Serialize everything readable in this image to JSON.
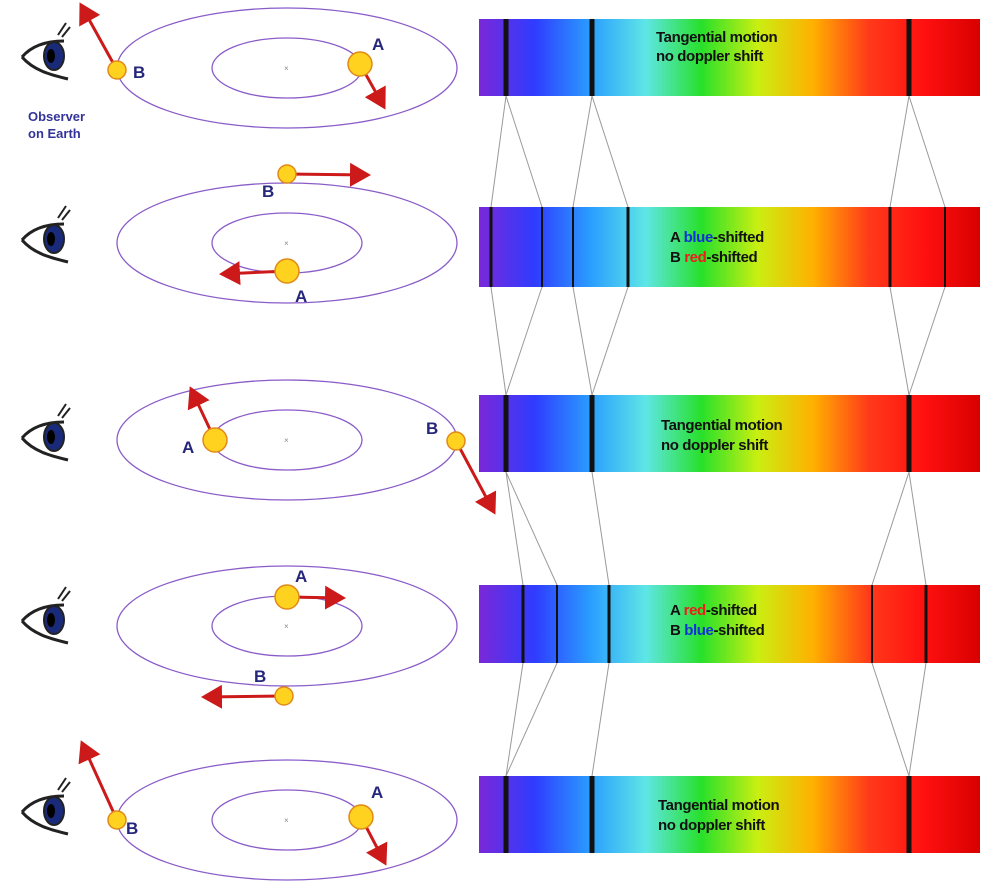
{
  "observer": {
    "label_line1": "Observer",
    "label_line2": "on Earth",
    "icon": "eye-icon"
  },
  "stars": {
    "a": "A",
    "b": "B"
  },
  "colors": {
    "orbit": "#8a5cc8",
    "star_fill": "#ffd21f",
    "star_stroke": "#e08a1a",
    "arrow": "#cc1a1a",
    "label": "#26267a",
    "blue_word": "#1030d8",
    "red_word": "#ee1c1c",
    "spectrum": [
      "#7a28d8",
      "#2f3cff",
      "#2a9dff",
      "#5ee6e6",
      "#28e02a",
      "#c9ef12",
      "#ffb000",
      "#ff3a1a",
      "#ff1010",
      "#d80000"
    ]
  },
  "panels": [
    {
      "phase": "tangential",
      "text_line1": {
        "plain": "Tangential motion"
      },
      "text_line2": {
        "plain": "no doppler shift"
      },
      "absorption_line_shift": "none"
    },
    {
      "phase": "a-approaching",
      "text_line1": {
        "prefix": "A ",
        "colored": "blue",
        "suffix": "-shifted",
        "color": "blue"
      },
      "text_line2": {
        "prefix": "B ",
        "colored": "red",
        "suffix": "-shifted",
        "color": "red"
      },
      "absorption_line_shift": "split"
    },
    {
      "phase": "tangential",
      "text_line1": {
        "plain": "Tangential motion"
      },
      "text_line2": {
        "plain": "no doppler shift"
      },
      "absorption_line_shift": "none"
    },
    {
      "phase": "a-receding",
      "text_line1": {
        "prefix": "A ",
        "colored": "red",
        "suffix": "-shifted",
        "color": "red"
      },
      "text_line2": {
        "prefix": "B ",
        "colored": "blue",
        "suffix": "-shifted",
        "color": "blue"
      },
      "absorption_line_shift": "split"
    },
    {
      "phase": "tangential",
      "text_line1": {
        "plain": "Tangential motion"
      },
      "text_line2": {
        "plain": "no doppler shift"
      },
      "absorption_line_shift": "none"
    }
  ]
}
